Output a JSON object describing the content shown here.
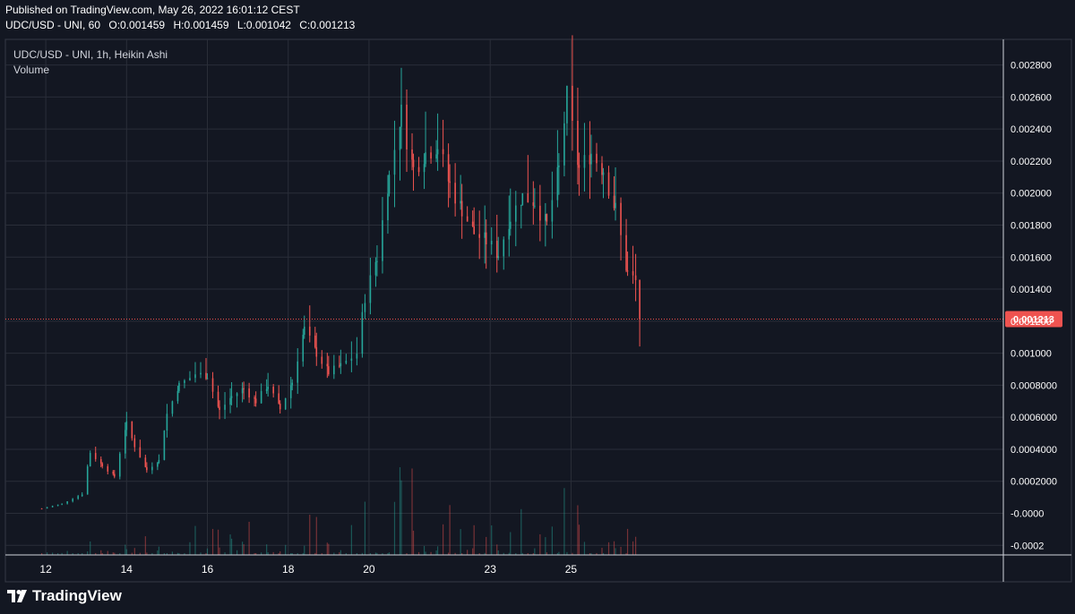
{
  "header": {
    "published": "Published on TradingView.com, May 26, 2022 16:01:12 CEST",
    "symbol_line": "UDC/USD - UNI, 60",
    "ohlc": [
      {
        "label": "O:",
        "value": "0.001459"
      },
      {
        "label": "H:",
        "value": "0.001459"
      },
      {
        "label": "L:",
        "value": "0.001042"
      },
      {
        "label": "C:",
        "value": "0.001213"
      }
    ]
  },
  "legend": {
    "series_title": "UDC/USD - UNI, 1h, Heikin Ashi",
    "volume_title": "Volume"
  },
  "brand": {
    "name": "TradingView",
    "icon": "tradingview-logo-icon"
  },
  "colors": {
    "background": "#131722",
    "up": "#26a69a",
    "down": "#ef5350",
    "grid": "#2a2e39",
    "axis_text": "#ffffff",
    "price_label_bg": "#ef5350"
  },
  "chart_data": {
    "type": "candlestick",
    "title": "UDC/USD - UNI, 1h, Heikin Ashi",
    "price_axis_ticks": [
      "0.002800",
      "0.002600",
      "0.002400",
      "0.002200",
      "0.002000",
      "0.001800",
      "0.001600",
      "0.001400",
      "0.001200",
      "0.001000",
      "0.0008000",
      "0.0006000",
      "0.0004000",
      "0.0002000",
      "-0.0000",
      "-0.0002"
    ],
    "price_axis_tick_values": [
      0.0028,
      0.0026,
      0.0024,
      0.0022,
      0.002,
      0.0018,
      0.0016,
      0.0014,
      0.0012,
      0.001,
      0.0008,
      0.0006,
      0.0004,
      0.0002,
      0.0,
      -0.0002
    ],
    "ylim": [
      -0.00026,
      0.00296
    ],
    "x_ticks": [
      "12",
      "14",
      "16",
      "18",
      "20",
      "23",
      "25"
    ],
    "x_tick_days": [
      12,
      14,
      16,
      18,
      20,
      23,
      25
    ],
    "xlim_days": [
      11.0,
      35.7
    ],
    "last_price_label": "0.001213",
    "last_price": 0.001213,
    "series": [
      {
        "name": "UDC/USD - UNI, 1h, Heikin Ashi",
        "points": [
          {
            "day": 11.9,
            "close": 3e-05
          },
          {
            "day": 12.4,
            "close": 6e-05
          },
          {
            "day": 12.9,
            "close": 0.00012
          },
          {
            "day": 13.1,
            "close": 0.00038
          },
          {
            "day": 13.4,
            "close": 0.0003
          },
          {
            "day": 13.7,
            "close": 0.00023
          },
          {
            "day": 14.0,
            "close": 0.00056
          },
          {
            "day": 14.2,
            "close": 0.00042
          },
          {
            "day": 14.5,
            "close": 0.00027
          },
          {
            "day": 14.8,
            "close": 0.00033
          },
          {
            "day": 15.0,
            "close": 0.00062
          },
          {
            "day": 15.3,
            "close": 0.0008
          },
          {
            "day": 15.7,
            "close": 0.00087
          },
          {
            "day": 16.0,
            "close": 0.00086
          },
          {
            "day": 16.3,
            "close": 0.00064
          },
          {
            "day": 16.6,
            "close": 0.00073
          },
          {
            "day": 16.9,
            "close": 0.00078
          },
          {
            "day": 17.2,
            "close": 0.0007
          },
          {
            "day": 17.5,
            "close": 0.0008
          },
          {
            "day": 17.8,
            "close": 0.00065
          },
          {
            "day": 18.1,
            "close": 0.00082
          },
          {
            "day": 18.4,
            "close": 0.00115
          },
          {
            "day": 18.7,
            "close": 0.001
          },
          {
            "day": 19.0,
            "close": 0.00088
          },
          {
            "day": 19.3,
            "close": 0.00092
          },
          {
            "day": 19.7,
            "close": 0.001
          },
          {
            "day": 19.9,
            "close": 0.00135
          },
          {
            "day": 20.2,
            "close": 0.0016
          },
          {
            "day": 20.5,
            "close": 0.0021
          },
          {
            "day": 20.8,
            "close": 0.0025
          },
          {
            "day": 21.1,
            "close": 0.00215
          },
          {
            "day": 21.4,
            "close": 0.00225
          },
          {
            "day": 21.7,
            "close": 0.0023
          },
          {
            "day": 22.0,
            "close": 0.00205
          },
          {
            "day": 22.3,
            "close": 0.0019
          },
          {
            "day": 22.6,
            "close": 0.00175
          },
          {
            "day": 22.9,
            "close": 0.0017
          },
          {
            "day": 23.2,
            "close": 0.00162
          },
          {
            "day": 23.5,
            "close": 0.00185
          },
          {
            "day": 23.8,
            "close": 0.00198
          },
          {
            "day": 24.1,
            "close": 0.00195
          },
          {
            "day": 24.4,
            "close": 0.0018
          },
          {
            "day": 24.7,
            "close": 0.00215
          },
          {
            "day": 24.9,
            "close": 0.0026
          },
          {
            "day": 25.2,
            "close": 0.00215
          },
          {
            "day": 25.5,
            "close": 0.00225
          },
          {
            "day": 25.8,
            "close": 0.00215
          },
          {
            "day": 26.1,
            "close": 0.0019
          },
          {
            "day": 26.4,
            "close": 0.0015
          },
          {
            "day": 26.6,
            "close": 0.00145
          },
          {
            "day": 26.7,
            "close": 0.001213
          }
        ]
      }
    ],
    "volume_note": "Volume histogram along the bottom, colored by candle direction"
  }
}
